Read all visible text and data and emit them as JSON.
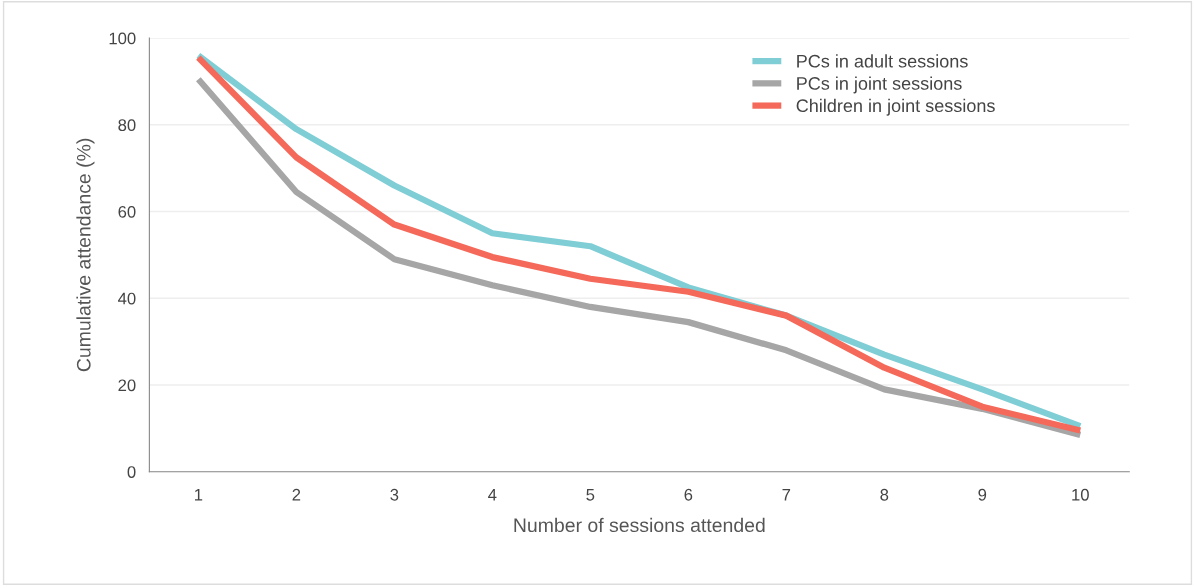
{
  "chart_data": {
    "type": "line",
    "xlabel": "Number of sessions attended",
    "ylabel": "Cumulative attendance (%)",
    "categories": [
      "1",
      "2",
      "3",
      "4",
      "5",
      "6",
      "7",
      "8",
      "9",
      "10"
    ],
    "series": [
      {
        "name": "PCs in adult sessions",
        "color": "#7fcdd5",
        "values": [
          96,
          79,
          66,
          55,
          52,
          42.5,
          36,
          27,
          19,
          10.5
        ]
      },
      {
        "name": "PCs in joint sessions",
        "color": "#a6a6a6",
        "values": [
          90.5,
          64.5,
          49,
          43,
          38,
          34.5,
          28,
          19,
          14.5,
          8.5
        ]
      },
      {
        "name": "Children in joint sessions",
        "color": "#f4695a",
        "values": [
          95.5,
          72.5,
          57,
          49.5,
          44.5,
          41.5,
          36,
          24,
          15,
          9.5
        ]
      }
    ],
    "ylim": [
      0,
      100
    ],
    "yticks": [
      0,
      20,
      40,
      60,
      80,
      100
    ],
    "grid": "y",
    "legend": "top right",
    "marker": "none",
    "line_style": "solid"
  }
}
